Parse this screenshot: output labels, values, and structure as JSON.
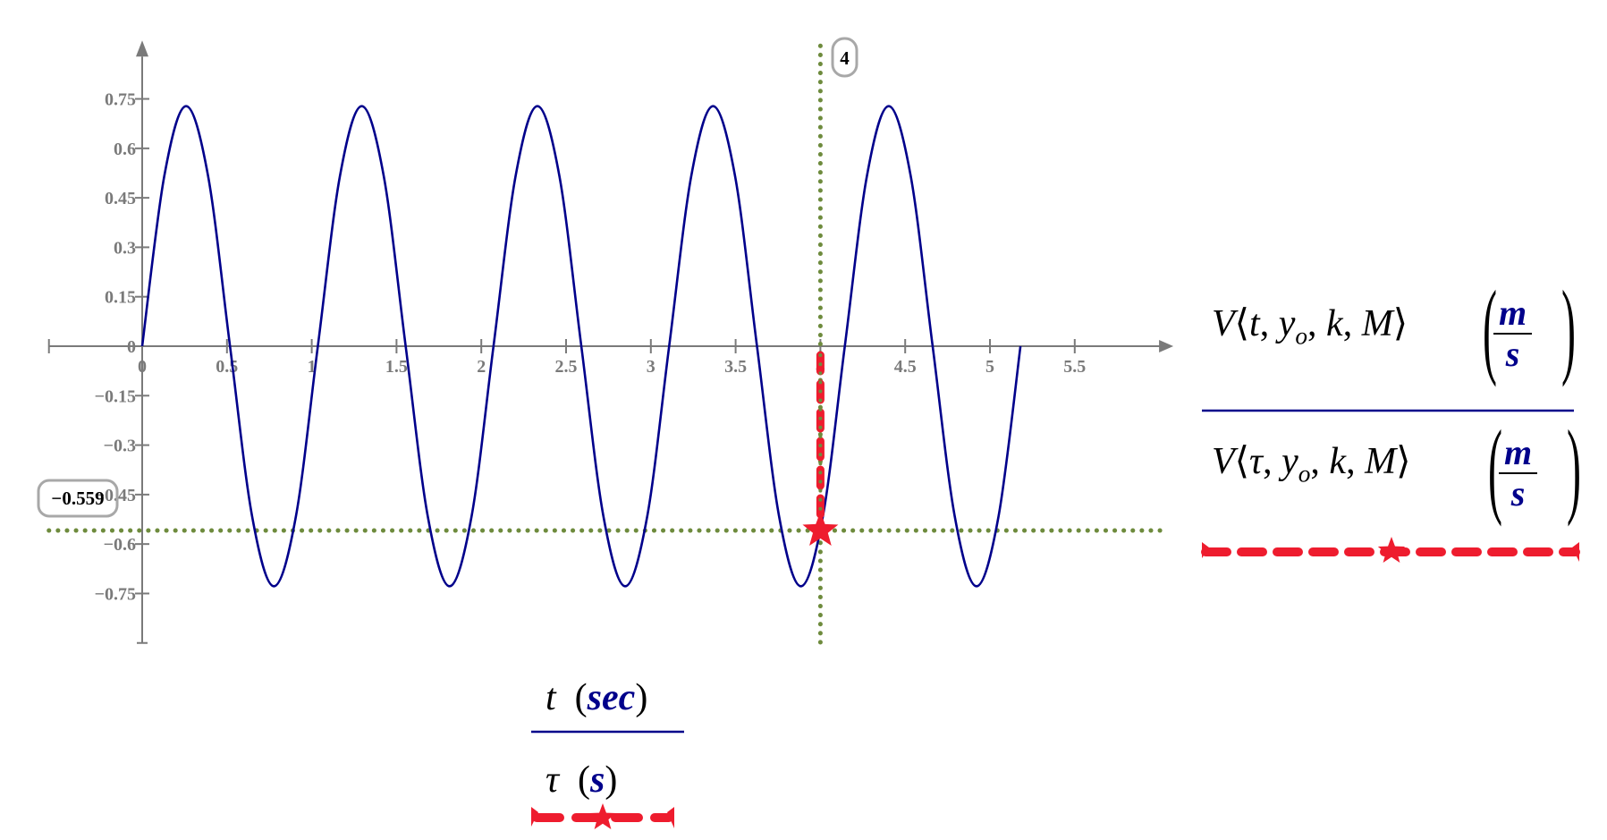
{
  "chart_data": {
    "type": "line",
    "x_axis": {
      "range": [
        -0.55,
        6.05
      ],
      "ticks": [
        0,
        0.5,
        1,
        1.5,
        2,
        2.5,
        3,
        3.5,
        4,
        4.5,
        5,
        5.5
      ],
      "tick_labels": [
        "0",
        "0.5",
        "1",
        "1.5",
        "2",
        "2.5",
        "3",
        "3.5",
        "4",
        "4.5",
        "5",
        "5.5"
      ]
    },
    "y_axis": {
      "range": [
        -0.9,
        0.9
      ],
      "ticks": [
        0.75,
        0.6,
        0.45,
        0.3,
        0.15,
        0,
        -0.15,
        -0.3,
        -0.45,
        -0.6,
        -0.75
      ],
      "tick_labels": [
        "0.75",
        "0.6",
        "0.45",
        "0.3",
        "0.15",
        "0",
        "−0.15",
        "−0.3",
        "−0.45",
        "−0.6",
        "−0.75"
      ]
    },
    "grid": false,
    "series": [
      {
        "color": "#00008b",
        "style": "solid",
        "x": [
          0,
          0.13,
          0.259,
          0.389,
          0.518,
          0.648,
          0.777,
          0.907,
          1.036,
          1.166,
          1.295,
          1.425,
          1.554,
          1.684,
          1.813,
          1.943,
          2.072,
          2.202,
          2.331,
          2.461,
          2.59,
          2.72,
          2.849,
          2.979,
          3.108,
          3.238,
          3.367,
          3.497,
          3.626,
          3.756,
          3.885,
          4.015,
          4.144,
          4.274,
          4.403,
          4.533,
          4.662,
          4.792,
          4.921,
          5.051,
          5.18
        ],
        "y": [
          0,
          0.515,
          0.728,
          0.515,
          0,
          -0.515,
          -0.728,
          -0.515,
          0,
          0.515,
          0.728,
          0.515,
          0,
          -0.515,
          -0.728,
          -0.515,
          0,
          0.515,
          0.728,
          0.515,
          0,
          -0.515,
          -0.728,
          -0.515,
          0,
          0.515,
          0.728,
          0.515,
          0,
          -0.515,
          -0.728,
          -0.515,
          0,
          0.515,
          0.728,
          0.515,
          0,
          -0.515,
          -0.728,
          -0.515,
          0
        ]
      },
      {
        "color": "#ee1c2e",
        "style": "dashed",
        "marker": "star",
        "x": [
          4
        ],
        "y": [
          -0.559
        ]
      }
    ],
    "cursor": {
      "x": 4,
      "y": -0.559,
      "x_readout": "4",
      "y_readout": "−0.559",
      "color": "#6e8b3d"
    }
  },
  "y_legend": [
    {
      "fn": "V",
      "arg1": "t",
      "arg2": "y",
      "arg2_sub": "o",
      "arg3": "k",
      "arg4": "M",
      "unit_num": "m",
      "unit_den": "s",
      "color": "#00008b",
      "style": "solid"
    },
    {
      "fn": "V",
      "arg1": "τ",
      "arg2": "y",
      "arg2_sub": "o",
      "arg3": "k",
      "arg4": "M",
      "unit_num": "m",
      "unit_den": "s",
      "color": "#ee1c2e",
      "style": "dashed-star"
    }
  ],
  "x_legend": [
    {
      "var": "t",
      "unit": "sec",
      "color": "#00008b",
      "style": "solid"
    },
    {
      "var": "τ",
      "unit": "s",
      "color": "#ee1c2e",
      "style": "dashed-star"
    }
  ]
}
